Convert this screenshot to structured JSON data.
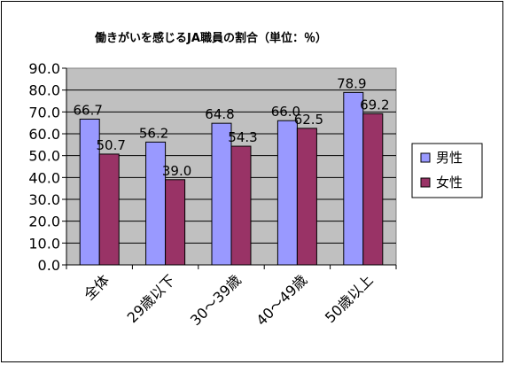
{
  "chart_data": {
    "type": "bar",
    "title": "働きがいを感じるJA職員の割合（単位：％）",
    "categories": [
      "全体",
      "29歳以下",
      "30～39歳",
      "40～49歳",
      "50歳以上"
    ],
    "series": [
      {
        "name": "男性",
        "values": [
          66.7,
          56.2,
          64.8,
          66.0,
          78.9
        ],
        "color": "#9999ff"
      },
      {
        "name": "女性",
        "values": [
          50.7,
          39.0,
          54.3,
          62.5,
          69.2
        ],
        "color": "#993366"
      }
    ],
    "value_labels": [
      [
        "66.7",
        "56.2",
        "64.8",
        "66.0",
        "78.9"
      ],
      [
        "50.7",
        "39.0",
        "54.3",
        "62.5",
        "69.2"
      ]
    ],
    "yticks": [
      "0.0",
      "10.0",
      "20.0",
      "30.0",
      "40.0",
      "50.0",
      "60.0",
      "70.0",
      "80.0",
      "90.0"
    ],
    "ylim": [
      0,
      90
    ],
    "grid": true,
    "plot_background": "#c0c0c0",
    "legend_position": "right"
  }
}
